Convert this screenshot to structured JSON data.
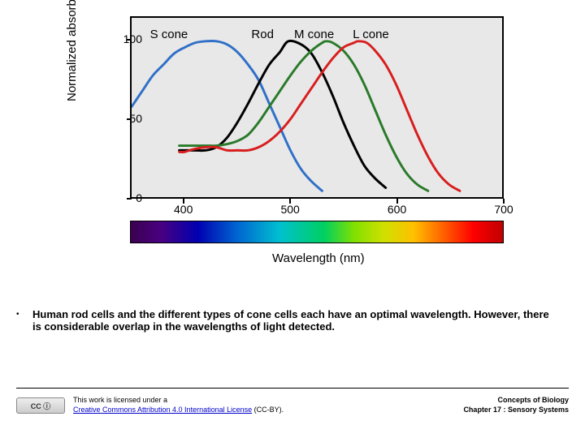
{
  "chart": {
    "type": "line",
    "ylabel": "Normalized absorbance",
    "xlabel": "Wavelength (nm)",
    "xlim": [
      350,
      700
    ],
    "ylim": [
      0,
      115
    ],
    "yticks": [
      0,
      50,
      100
    ],
    "xticks": [
      400,
      500,
      600,
      700
    ],
    "background_color": "#e8e8e8",
    "line_width": 3,
    "series": [
      {
        "name": "S cone",
        "label": "S cone",
        "color": "#3070c8",
        "label_x": 390,
        "label_y": 108,
        "points": [
          [
            350,
            58
          ],
          [
            360,
            68
          ],
          [
            370,
            78
          ],
          [
            380,
            85
          ],
          [
            390,
            92
          ],
          [
            400,
            96
          ],
          [
            410,
            99
          ],
          [
            420,
            100
          ],
          [
            430,
            100
          ],
          [
            440,
            98
          ],
          [
            450,
            93
          ],
          [
            460,
            85
          ],
          [
            470,
            75
          ],
          [
            480,
            60
          ],
          [
            490,
            45
          ],
          [
            500,
            30
          ],
          [
            510,
            18
          ],
          [
            520,
            10
          ],
          [
            530,
            4
          ]
        ]
      },
      {
        "name": "Rod",
        "label": "Rod",
        "color": "#000000",
        "label_x": 485,
        "label_y": 108,
        "points": [
          [
            395,
            30
          ],
          [
            400,
            30
          ],
          [
            410,
            30
          ],
          [
            420,
            30
          ],
          [
            430,
            32
          ],
          [
            440,
            38
          ],
          [
            450,
            48
          ],
          [
            460,
            60
          ],
          [
            470,
            73
          ],
          [
            480,
            85
          ],
          [
            490,
            93
          ],
          [
            498,
            100
          ],
          [
            510,
            98
          ],
          [
            520,
            92
          ],
          [
            530,
            80
          ],
          [
            540,
            65
          ],
          [
            550,
            48
          ],
          [
            560,
            33
          ],
          [
            570,
            20
          ],
          [
            580,
            12
          ],
          [
            590,
            6
          ]
        ]
      },
      {
        "name": "M cone",
        "label": "M cone",
        "color": "#2a7a2a",
        "label_x": 525,
        "label_y": 108,
        "points": [
          [
            395,
            33
          ],
          [
            400,
            33
          ],
          [
            410,
            33
          ],
          [
            420,
            33
          ],
          [
            430,
            33
          ],
          [
            440,
            34
          ],
          [
            450,
            36
          ],
          [
            460,
            40
          ],
          [
            470,
            48
          ],
          [
            480,
            58
          ],
          [
            490,
            68
          ],
          [
            500,
            78
          ],
          [
            510,
            87
          ],
          [
            520,
            94
          ],
          [
            530,
            99
          ],
          [
            534,
            100
          ],
          [
            540,
            99
          ],
          [
            550,
            94
          ],
          [
            560,
            85
          ],
          [
            570,
            72
          ],
          [
            580,
            56
          ],
          [
            590,
            40
          ],
          [
            600,
            26
          ],
          [
            610,
            15
          ],
          [
            620,
            8
          ],
          [
            630,
            4
          ]
        ]
      },
      {
        "name": "L cone",
        "label": "L cone",
        "color": "#d81e1e",
        "label_x": 580,
        "label_y": 108,
        "points": [
          [
            395,
            29
          ],
          [
            400,
            29
          ],
          [
            410,
            31
          ],
          [
            420,
            32
          ],
          [
            430,
            32
          ],
          [
            440,
            30
          ],
          [
            450,
            30
          ],
          [
            460,
            30
          ],
          [
            470,
            32
          ],
          [
            480,
            36
          ],
          [
            490,
            42
          ],
          [
            500,
            50
          ],
          [
            510,
            60
          ],
          [
            520,
            70
          ],
          [
            530,
            80
          ],
          [
            540,
            89
          ],
          [
            550,
            96
          ],
          [
            560,
            99
          ],
          [
            564,
            100
          ],
          [
            572,
            99
          ],
          [
            580,
            94
          ],
          [
            590,
            85
          ],
          [
            600,
            72
          ],
          [
            610,
            56
          ],
          [
            620,
            40
          ],
          [
            630,
            26
          ],
          [
            640,
            15
          ],
          [
            650,
            8
          ],
          [
            660,
            4
          ]
        ]
      }
    ]
  },
  "caption": "Human rod cells and the different types of cone cells each have an optimal wavelength. However, there is considerable overlap in the wavelengths of light detected.",
  "footer": {
    "license_line1": "This work is licensed under a",
    "license_link_text": "Creative Commons Attribution 4.0 International License",
    "license_suffix": " (CC-BY).",
    "book_title": "Concepts of Biology",
    "chapter": "Chapter 17 : Sensory Systems"
  }
}
